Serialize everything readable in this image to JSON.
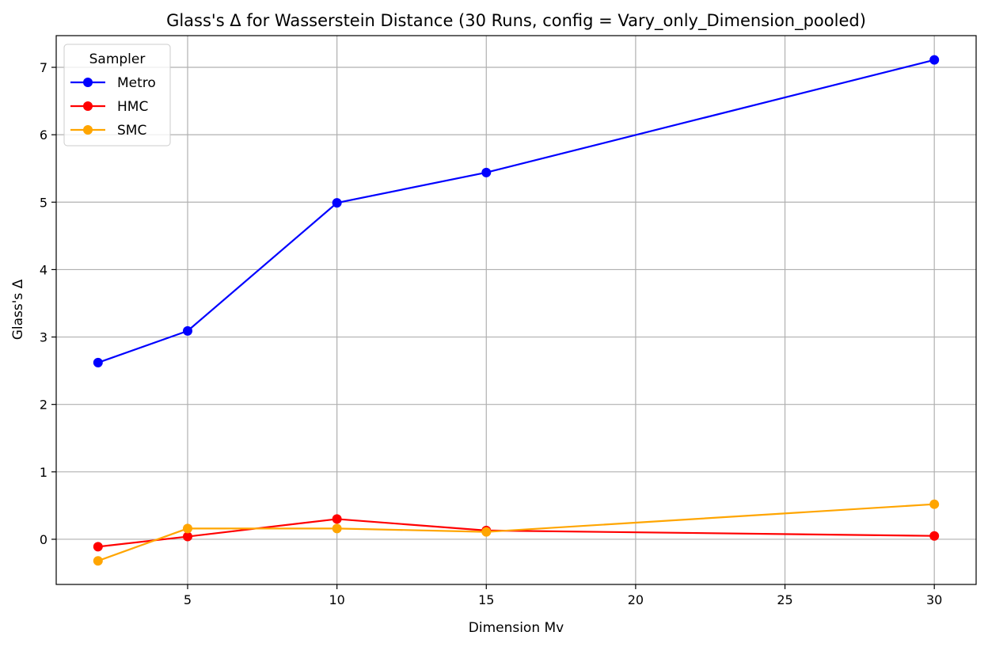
{
  "chart_data": {
    "type": "line",
    "title": "Glass's Δ for Wasserstein Distance (30 Runs, config = Vary_only_Dimension_pooled)",
    "xlabel": "Dimension Mv",
    "ylabel": "Glass's Δ",
    "x": [
      2,
      5,
      10,
      15,
      30
    ],
    "xlim": [
      0.6,
      31.4
    ],
    "ylim": [
      -0.67,
      7.47
    ],
    "xticks": [
      5,
      10,
      15,
      20,
      25,
      30
    ],
    "yticks": [
      0,
      1,
      2,
      3,
      4,
      5,
      6,
      7
    ],
    "xtick_labels": [
      "5",
      "10",
      "15",
      "20",
      "25",
      "30"
    ],
    "ytick_labels": [
      "0",
      "1",
      "2",
      "3",
      "4",
      "5",
      "6",
      "7"
    ],
    "grid": true,
    "legend": {
      "title": "Sampler",
      "placement": "top-left"
    },
    "series": [
      {
        "name": "Metro",
        "color": "#0000ff",
        "values": [
          2.62,
          3.09,
          4.99,
          5.44,
          7.11
        ]
      },
      {
        "name": "HMC",
        "color": "#ff0000",
        "values": [
          -0.11,
          0.04,
          0.3,
          0.13,
          0.05
        ]
      },
      {
        "name": "SMC",
        "color": "#ffa500",
        "values": [
          -0.32,
          0.16,
          0.16,
          0.11,
          0.52
        ]
      }
    ]
  }
}
